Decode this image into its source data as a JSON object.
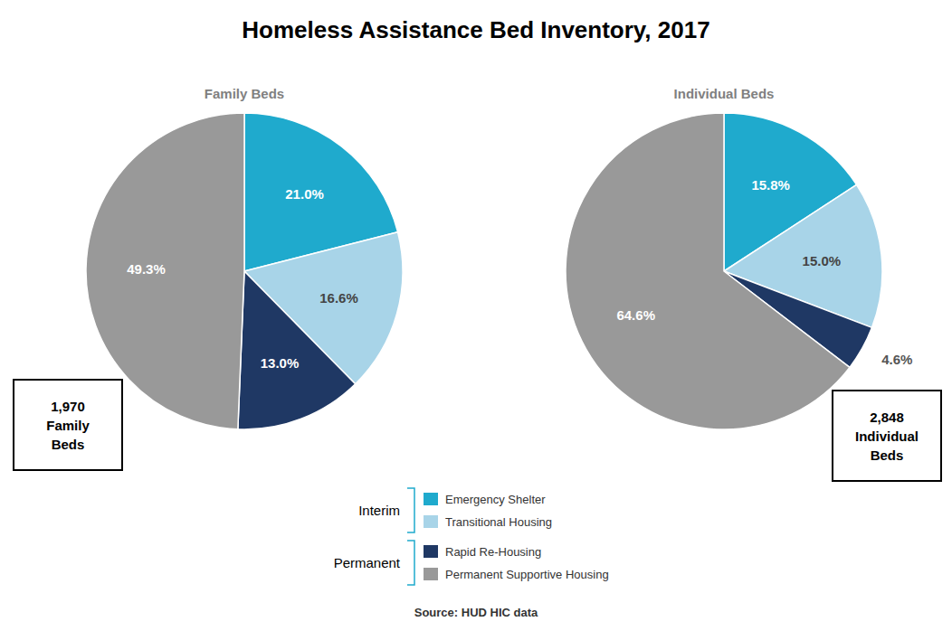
{
  "chart_data": {
    "type": "pie",
    "title": "Homeless Assistance Bed Inventory, 2017",
    "categories": [
      "Emergency Shelter",
      "Transitional Housing",
      "Rapid Re-Housing",
      "Permanent Supportive Housing"
    ],
    "colors": [
      "#1FAACD",
      "#A8D4E8",
      "#1F3864",
      "#999999"
    ],
    "series": [
      {
        "name": "Family Beds",
        "values": [
          21.0,
          16.6,
          13.0,
          49.3
        ],
        "value_labels": [
          "21.0%",
          "16.6%",
          "13.0%",
          "49.3%"
        ]
      },
      {
        "name": "Individual Beds",
        "values": [
          15.8,
          15.0,
          4.6,
          64.6
        ],
        "value_labels": [
          "15.8%",
          "15.0%",
          "4.6%",
          "64.6%"
        ]
      }
    ],
    "data_labels": true,
    "legend": "bottom",
    "annotations": [
      "1,970\nFamily\nBeds",
      "2,848\nIndividual\nBeds",
      "Interim",
      "Permanent",
      "Source: HUD HIC data"
    ]
  }
}
